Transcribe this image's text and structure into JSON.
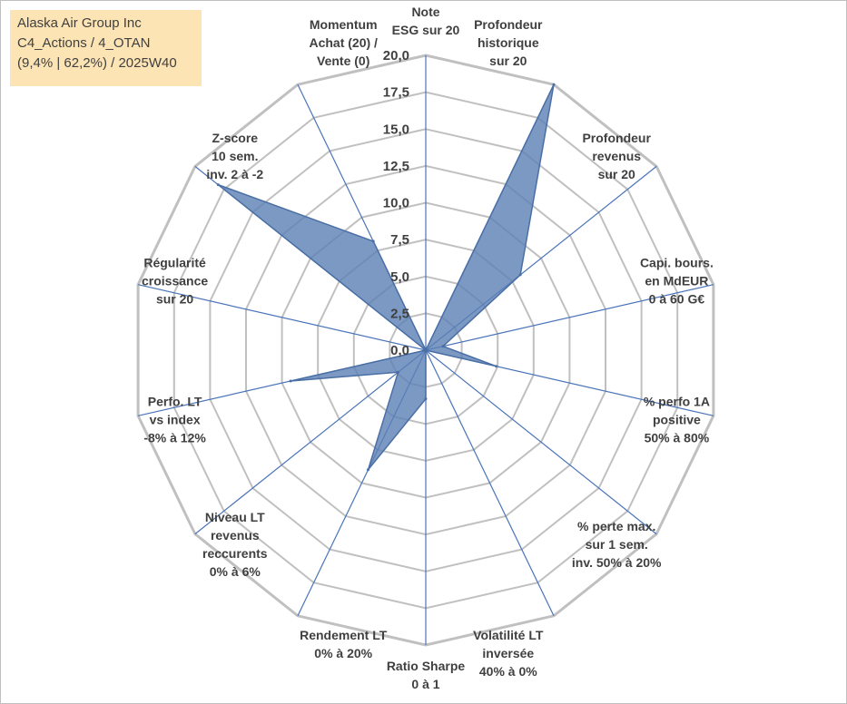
{
  "title_box": {
    "line1": "Alaska Air Group Inc",
    "line2": "C4_Actions / 4_OTAN",
    "line3": "(9,4% | 62,2%) / 2025W40"
  },
  "colors": {
    "grid": "#c0c0c0",
    "spoke": "#4a74b8",
    "fill": "#5b7fb5",
    "stroke": "#4a6fa5",
    "text": "#404040"
  },
  "chart_data": {
    "type": "radar",
    "title": "",
    "rmax": 20,
    "rings": [
      2.5,
      5,
      7.5,
      10,
      12.5,
      15,
      17.5,
      20
    ],
    "tick_labels": [
      "0,0",
      "2,5",
      "5,0",
      "7,5",
      "10,0",
      "12,5",
      "15,0",
      "17,5",
      "20,0"
    ],
    "axes": [
      {
        "lines": [
          "Note",
          "ESG sur 20"
        ],
        "value": 0
      },
      {
        "lines": [
          "Profondeur",
          "historique",
          "sur 20"
        ],
        "value": 20
      },
      {
        "lines": [
          "Profondeur",
          "revenus",
          "sur 20"
        ],
        "value": 8.2
      },
      {
        "lines": [
          "Capi. bours.",
          "en MdEUR",
          "0 à 60 G€"
        ],
        "value": 1.2
      },
      {
        "lines": [
          "% perfo 1A",
          "positive",
          "50% à 80%"
        ],
        "value": 4.9
      },
      {
        "lines": [
          "% perte max.",
          "sur 1 sem.",
          "inv. 50% à 20%"
        ],
        "value": 0
      },
      {
        "lines": [
          "Volatilité LT",
          "inversée",
          "40% à 0%"
        ],
        "value": 0
      },
      {
        "lines": [
          "Ratio Sharpe",
          "0 à 1"
        ],
        "value": 3.3
      },
      {
        "lines": [
          "Rendement LT",
          "0% à 20%"
        ],
        "value": 9.0
      },
      {
        "lines": [
          "Niveau LT",
          "revenus",
          "reccurents",
          "0% à 6%"
        ],
        "value": 2.4
      },
      {
        "lines": [
          "Perfo. LT",
          "vs index",
          "-8% à 12%"
        ],
        "value": 9.4
      },
      {
        "lines": [
          "Régularité",
          "croissance",
          "sur 20"
        ],
        "value": 0
      },
      {
        "lines": [
          "Z-score",
          "10 sem.",
          "inv. 2 à -2"
        ],
        "value": 18.0
      },
      {
        "lines": [
          "Momentum",
          "Achat (20) /",
          "Vente (0)"
        ],
        "value": 8.2
      }
    ]
  }
}
